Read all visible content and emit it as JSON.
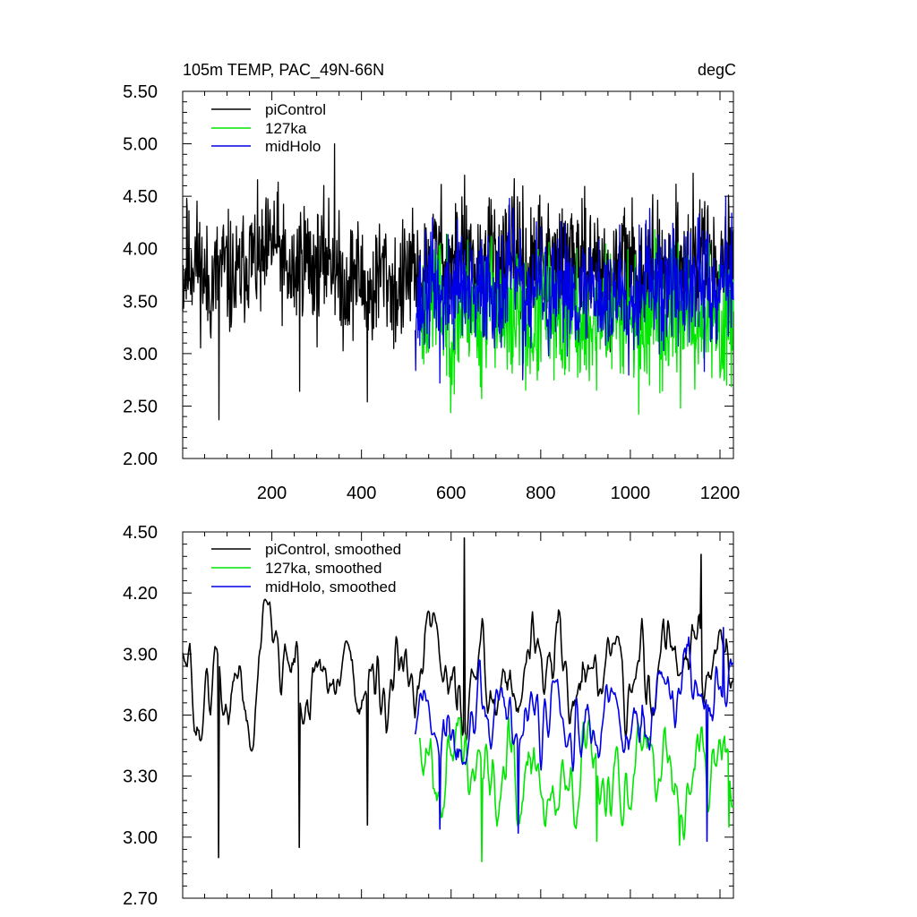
{
  "figure_title": "105m TEMP, PAC_49N-66N",
  "units": "degC",
  "colors": {
    "piControl": "#000000",
    "127ka": "#00e600",
    "midHolo": "#0000e6"
  },
  "chart_data": [
    {
      "type": "line",
      "title": "105m TEMP, PAC_49N-66N",
      "units": "degC",
      "xlim": [
        1,
        1230
      ],
      "ylim": [
        2.0,
        5.5
      ],
      "yticks": [
        "5.50",
        "5.00",
        "4.50",
        "4.00",
        "3.50",
        "3.00",
        "2.50",
        "2.00"
      ],
      "yticks_values": [
        5.5,
        5.0,
        4.5,
        4.0,
        3.5,
        3.0,
        2.5,
        2.0
      ],
      "xticks": [
        "200",
        "400",
        "600",
        "800",
        "1000",
        "1200"
      ],
      "xticks_values": [
        200,
        400,
        600,
        800,
        1000,
        1200
      ],
      "legend": [
        "piControl",
        "127ka",
        "midHolo"
      ],
      "series": [
        {
          "name": "piControl",
          "color": "#000000",
          "x_start": 1,
          "x_end": 1230,
          "n": 1230,
          "seed": 11,
          "smooth": 1,
          "noise": 0.28,
          "wave": 0.1,
          "base": [
            [
              1,
              3.8
            ],
            [
              150,
              3.75
            ],
            [
              200,
              4.05
            ],
            [
              250,
              3.8
            ],
            [
              340,
              3.85
            ],
            [
              420,
              3.6
            ],
            [
              520,
              3.75
            ],
            [
              600,
              3.9
            ],
            [
              700,
              3.85
            ],
            [
              800,
              3.9
            ],
            [
              900,
              3.85
            ],
            [
              1000,
              3.75
            ],
            [
              1100,
              3.85
            ],
            [
              1230,
              3.85
            ]
          ],
          "spikes": [
            [
              10,
              4.48
            ],
            [
              82,
              2.37
            ],
            [
              262,
              2.64
            ],
            [
              340,
              5.0
            ],
            [
              413,
              2.54
            ],
            [
              630,
              4.7
            ],
            [
              1140,
              4.72
            ]
          ]
        },
        {
          "name": "127ka",
          "color": "#00e600",
          "x_start": 530,
          "x_end": 1230,
          "n": 700,
          "seed": 23,
          "smooth": 1,
          "noise": 0.3,
          "wave": 0.12,
          "base": [
            [
              530,
              3.45
            ],
            [
              600,
              3.4
            ],
            [
              700,
              3.4
            ],
            [
              800,
              3.3
            ],
            [
              900,
              3.35
            ],
            [
              1000,
              3.35
            ],
            [
              1100,
              3.35
            ],
            [
              1230,
              3.35
            ]
          ],
          "spikes": [
            [
              668,
              2.57
            ],
            [
              925,
              2.65
            ],
            [
              1112,
              2.48
            ],
            [
              1215,
              2.7
            ]
          ]
        },
        {
          "name": "midHolo",
          "color": "#0000e6",
          "x_start": 520,
          "x_end": 1230,
          "n": 700,
          "seed": 37,
          "smooth": 1,
          "noise": 0.28,
          "wave": 0.1,
          "base": [
            [
              520,
              3.6
            ],
            [
              600,
              3.55
            ],
            [
              700,
              3.65
            ],
            [
              800,
              3.6
            ],
            [
              900,
              3.55
            ],
            [
              1000,
              3.6
            ],
            [
              1100,
              3.65
            ],
            [
              1230,
              3.7
            ]
          ],
          "spikes": [
            [
              575,
              2.72
            ],
            [
              760,
              2.75
            ],
            [
              1165,
              2.83
            ],
            [
              1213,
              4.5
            ]
          ]
        }
      ]
    },
    {
      "type": "line",
      "title": "",
      "xlim": [
        1,
        1230
      ],
      "ylim": [
        2.7,
        4.5
      ],
      "yticks": [
        "4.50",
        "4.20",
        "3.90",
        "3.60",
        "3.30",
        "3.00",
        "2.70"
      ],
      "yticks_values": [
        4.5,
        4.2,
        3.9,
        3.6,
        3.3,
        3.0,
        2.7
      ],
      "xticks": [],
      "xticks_values": [
        200,
        400,
        600,
        800,
        1000,
        1200
      ],
      "legend": [
        "piControl, smoothed",
        "127ka, smoothed",
        "midHolo, smoothed"
      ],
      "series": [
        {
          "name": "piControl, smoothed",
          "color": "#000000",
          "x_start": 1,
          "x_end": 1230,
          "n": 615,
          "seed": 51,
          "smooth": 3,
          "noise": 0.16,
          "wave": 0.12,
          "base": [
            [
              1,
              3.8
            ],
            [
              50,
              3.7
            ],
            [
              100,
              3.65
            ],
            [
              150,
              3.7
            ],
            [
              190,
              4.1
            ],
            [
              240,
              3.75
            ],
            [
              300,
              3.8
            ],
            [
              360,
              3.8
            ],
            [
              420,
              3.7
            ],
            [
              470,
              3.75
            ],
            [
              520,
              3.65
            ],
            [
              560,
              4.05
            ],
            [
              600,
              3.75
            ],
            [
              650,
              3.7
            ],
            [
              700,
              3.75
            ],
            [
              800,
              3.85
            ],
            [
              900,
              3.8
            ],
            [
              1000,
              3.8
            ],
            [
              1100,
              3.9
            ],
            [
              1230,
              3.85
            ]
          ],
          "spikes": [
            [
              82,
              2.9
            ],
            [
              262,
              2.95
            ],
            [
              413,
              3.06
            ],
            [
              630,
              4.47
            ],
            [
              1158,
              4.39
            ]
          ]
        },
        {
          "name": "127ka, smoothed",
          "color": "#00e600",
          "x_start": 530,
          "x_end": 1230,
          "n": 350,
          "seed": 63,
          "smooth": 3,
          "noise": 0.18,
          "wave": 0.12,
          "base": [
            [
              530,
              3.4
            ],
            [
              600,
              3.35
            ],
            [
              700,
              3.4
            ],
            [
              800,
              3.3
            ],
            [
              900,
              3.3
            ],
            [
              1000,
              3.3
            ],
            [
              1100,
              3.35
            ],
            [
              1230,
              3.3
            ]
          ],
          "spikes": [
            [
              668,
              2.88
            ],
            [
              925,
              2.98
            ],
            [
              1110,
              2.96
            ],
            [
              1220,
              3.05
            ]
          ]
        },
        {
          "name": "midHolo, smoothed",
          "color": "#0000e6",
          "x_start": 520,
          "x_end": 1230,
          "n": 350,
          "seed": 77,
          "smooth": 3,
          "noise": 0.16,
          "wave": 0.1,
          "base": [
            [
              520,
              3.55
            ],
            [
              600,
              3.45
            ],
            [
              700,
              3.6
            ],
            [
              800,
              3.55
            ],
            [
              900,
              3.5
            ],
            [
              1000,
              3.55
            ],
            [
              1100,
              3.7
            ],
            [
              1230,
              3.75
            ]
          ],
          "spikes": [
            [
              575,
              3.04
            ],
            [
              750,
              3.02
            ],
            [
              1170,
              2.98
            ],
            [
              1208,
              4.03
            ]
          ]
        }
      ]
    }
  ]
}
